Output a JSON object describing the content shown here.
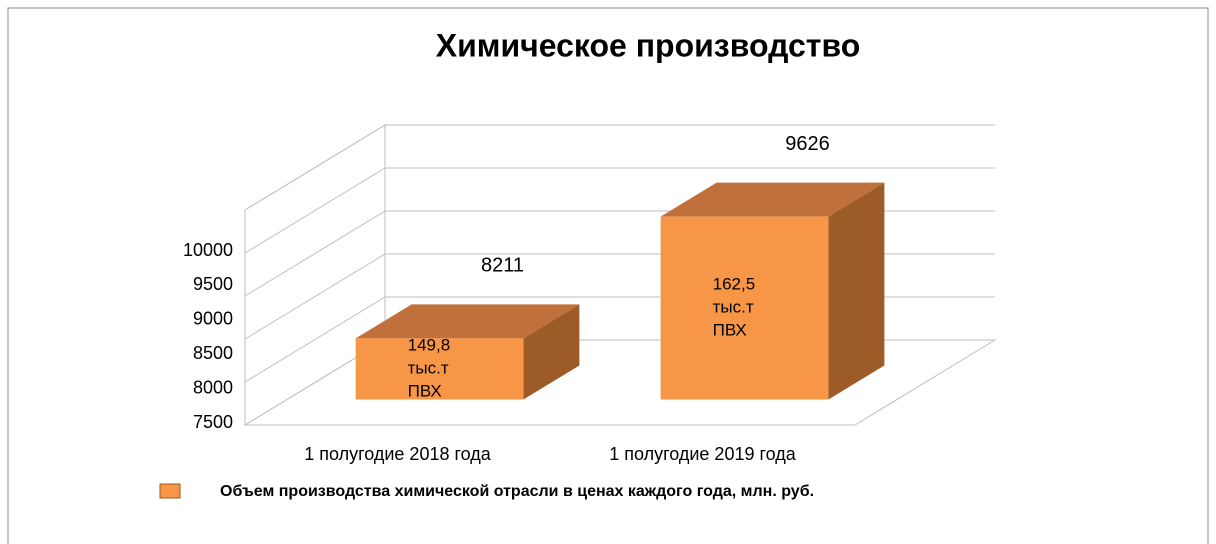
{
  "chart_data": {
    "type": "bar3d",
    "title": "Химическое производство",
    "categories": [
      "1 полугодие 2018 года",
      "1 полугодие 2019 года"
    ],
    "series": [
      {
        "name": "Объем производства  химической отрасли в ценах каждого  года, млн. руб.",
        "color": "#f79646",
        "values": [
          8211,
          9626
        ]
      }
    ],
    "bar_notes": [
      [
        "149,8",
        "тыс.т",
        "ПВХ"
      ],
      [
        "162,5",
        "тыс.т",
        "ПВХ"
      ]
    ],
    "ylim": [
      7500,
      10000
    ],
    "yticks": [
      7500,
      8000,
      8500,
      9000,
      9500,
      10000
    ],
    "grid": true,
    "legend": "bottom"
  }
}
